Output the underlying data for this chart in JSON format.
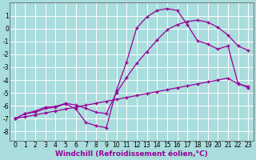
{
  "background_color": "#aadddd",
  "grid_color": "#ffffff",
  "line_color": "#990099",
  "marker": "+",
  "markersize": 3,
  "linewidth": 0.9,
  "xlabel": "Windchill (Refroidissement éolien,°C)",
  "xlabel_fontsize": 6.5,
  "tick_fontsize": 5.5,
  "xlim": [
    -0.5,
    23.5
  ],
  "ylim": [
    -8.7,
    2.0
  ],
  "xticks": [
    0,
    1,
    2,
    3,
    4,
    5,
    6,
    7,
    8,
    9,
    10,
    11,
    12,
    13,
    14,
    15,
    16,
    17,
    18,
    19,
    20,
    21,
    22,
    23
  ],
  "yticks": [
    -8,
    -7,
    -6,
    -5,
    -4,
    -3,
    -2,
    -1,
    0,
    1
  ],
  "curve1_x": [
    0,
    1,
    2,
    3,
    4,
    5,
    6,
    7,
    8,
    9,
    10,
    11,
    12,
    13,
    14,
    15,
    16,
    17,
    18,
    19,
    20,
    21,
    22,
    23
  ],
  "curve1_y": [
    -7.0,
    -6.6,
    -6.5,
    -6.2,
    -6.1,
    -5.85,
    -6.25,
    -7.3,
    -7.55,
    -7.7,
    -4.8,
    -2.6,
    0.05,
    0.9,
    1.4,
    1.55,
    1.4,
    0.3,
    -0.95,
    -1.2,
    -1.6,
    -1.35,
    -4.25,
    -4.6
  ],
  "curve2_x": [
    0,
    1,
    2,
    3,
    4,
    5,
    6,
    7,
    8,
    9,
    10,
    11,
    12,
    13,
    14,
    15,
    16,
    17,
    18,
    19,
    20,
    21,
    22,
    23
  ],
  "curve2_y": [
    -7.0,
    -6.6,
    -6.4,
    -6.1,
    -6.05,
    -5.8,
    -5.95,
    -6.2,
    -6.5,
    -6.6,
    -5.0,
    -3.8,
    -2.7,
    -1.8,
    -0.9,
    -0.1,
    0.3,
    0.55,
    0.65,
    0.5,
    0.1,
    -0.5,
    -1.35,
    -1.7
  ],
  "curve3_x": [
    0,
    1,
    2,
    3,
    4,
    5,
    6,
    7,
    8,
    9,
    10,
    11,
    12,
    13,
    14,
    15,
    16,
    17,
    18,
    19,
    20,
    21,
    22,
    23
  ],
  "curve3_y": [
    -7.0,
    -6.85,
    -6.7,
    -6.55,
    -6.4,
    -6.25,
    -6.1,
    -5.95,
    -5.8,
    -5.65,
    -5.5,
    -5.35,
    -5.2,
    -5.05,
    -4.9,
    -4.75,
    -4.6,
    -4.45,
    -4.3,
    -4.15,
    -4.0,
    -3.85,
    -4.3,
    -4.5
  ]
}
